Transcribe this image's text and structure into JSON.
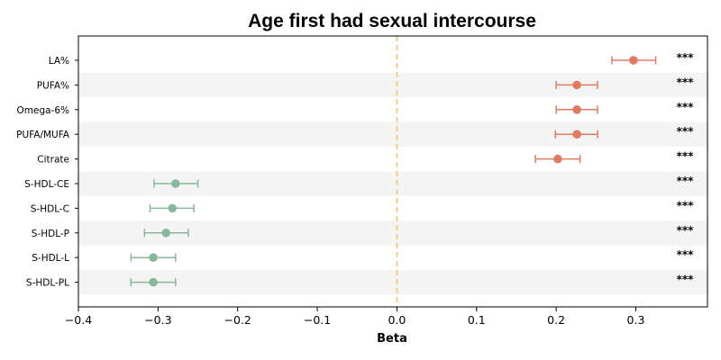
{
  "chart_data": {
    "type": "scatter",
    "subtype": "forest-plot",
    "title": "Age first had sexual intercourse",
    "xlabel": "Beta",
    "ylabel": "",
    "xlim": [
      -0.4,
      0.39
    ],
    "xticks": [
      -0.4,
      -0.3,
      -0.2,
      -0.1,
      0.0,
      0.1,
      0.2,
      0.3
    ],
    "xtick_labels": [
      "−0.4",
      "−0.3",
      "−0.2",
      "−0.1",
      "0.0",
      "0.1",
      "0.2",
      "0.3"
    ],
    "reference_line": 0.0,
    "grid": false,
    "alternating_row_shading": true,
    "colors": {
      "positive": "#e07b62",
      "negative": "#88b89b",
      "reference": "#f5c97a",
      "band": "#f4f4f4"
    },
    "rows": [
      {
        "label": "LA%",
        "beta": 0.297,
        "ci_low": 0.27,
        "ci_high": 0.325,
        "significance": "***"
      },
      {
        "label": "PUFA%",
        "beta": 0.226,
        "ci_low": 0.2,
        "ci_high": 0.252,
        "significance": "***"
      },
      {
        "label": "Omega-6%",
        "beta": 0.226,
        "ci_low": 0.2,
        "ci_high": 0.252,
        "significance": "***"
      },
      {
        "label": "PUFA/MUFA",
        "beta": 0.226,
        "ci_low": 0.199,
        "ci_high": 0.252,
        "significance": "***"
      },
      {
        "label": "Citrate",
        "beta": 0.202,
        "ci_low": 0.174,
        "ci_high": 0.23,
        "significance": "***"
      },
      {
        "label": "S-HDL-CE",
        "beta": -0.278,
        "ci_low": -0.305,
        "ci_high": -0.25,
        "significance": "***"
      },
      {
        "label": "S-HDL-C",
        "beta": -0.282,
        "ci_low": -0.31,
        "ci_high": -0.255,
        "significance": "***"
      },
      {
        "label": "S-HDL-P",
        "beta": -0.29,
        "ci_low": -0.317,
        "ci_high": -0.262,
        "significance": "***"
      },
      {
        "label": "S-HDL-L",
        "beta": -0.306,
        "ci_low": -0.334,
        "ci_high": -0.278,
        "significance": "***"
      },
      {
        "label": "S-HDL-PL",
        "beta": -0.306,
        "ci_low": -0.334,
        "ci_high": -0.278,
        "significance": "***"
      }
    ]
  }
}
